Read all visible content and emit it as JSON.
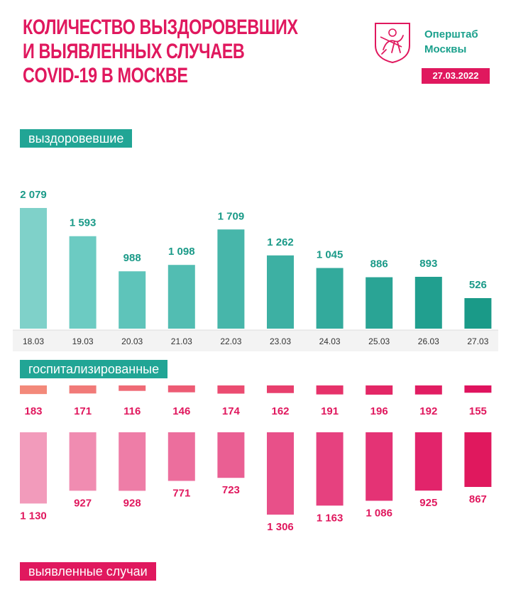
{
  "header": {
    "title_lines": [
      "КОЛИЧЕСТВО ВЫЗДОРОВЕВШИХ",
      "И ВЫЯВЛЕННЫХ СЛУЧАЕВ",
      "COVID-19 В МОСКВЕ"
    ],
    "org_lines": [
      "Оперштаб",
      "Москвы"
    ],
    "date": "27.03.2022",
    "emblem_icon": "moscow-coat-of-arms-icon"
  },
  "labels": {
    "recovered": "выздоровевшие",
    "hospitalized": "госпитализированные",
    "cases": "выявленные случаи"
  },
  "colors": {
    "accent_pink": "#e0185e",
    "accent_teal": "#21a595"
  },
  "chart_data": [
    {
      "type": "bar",
      "title": "выздоровевшие",
      "categories": [
        "18.03",
        "19.03",
        "20.03",
        "21.03",
        "22.03",
        "23.03",
        "24.03",
        "25.03",
        "26.03",
        "27.03"
      ],
      "values": [
        2079,
        1593,
        988,
        1098,
        1709,
        1262,
        1045,
        886,
        893,
        526
      ],
      "value_labels": [
        "2 079",
        "1 593",
        "988",
        "1 098",
        "1 709",
        "1 262",
        "1 045",
        "886",
        "893",
        "526"
      ],
      "colors": [
        "#7fd1c9",
        "#6ccbc2",
        "#5ec4ba",
        "#52bdb2",
        "#47b6aa",
        "#3db0a3",
        "#33aa9c",
        "#2aa495",
        "#219f8f",
        "#1a9a88"
      ]
    },
    {
      "type": "bar",
      "title": "госпитализированные",
      "categories": [
        "18.03",
        "19.03",
        "20.03",
        "21.03",
        "22.03",
        "23.03",
        "24.03",
        "25.03",
        "26.03",
        "27.03"
      ],
      "values": [
        183,
        171,
        116,
        146,
        174,
        162,
        191,
        196,
        192,
        155
      ],
      "value_labels": [
        "183",
        "171",
        "116",
        "146",
        "174",
        "162",
        "191",
        "196",
        "192",
        "155"
      ],
      "colors": [
        "#f3897a",
        "#f17a78",
        "#ef6a76",
        "#ed5b74",
        "#eb4c71",
        "#e83f6d",
        "#e6326a",
        "#e32766",
        "#e11d62",
        "#df135e"
      ]
    },
    {
      "type": "bar",
      "title": "выявленные случаи",
      "categories": [
        "18.03",
        "19.03",
        "20.03",
        "21.03",
        "22.03",
        "23.03",
        "24.03",
        "25.03",
        "26.03",
        "27.03"
      ],
      "values": [
        1130,
        927,
        928,
        771,
        723,
        1306,
        1163,
        1086,
        925,
        867
      ],
      "value_labels": [
        "1 130",
        "927",
        "928",
        "771",
        "723",
        "1 306",
        "1 163",
        "1 086",
        "925",
        "867"
      ],
      "colors": [
        "#f29bbb",
        "#f08cb1",
        "#ee7da7",
        "#ec6e9d",
        "#ea5f93",
        "#e85089",
        "#e6417f",
        "#e43375",
        "#e2246b",
        "#e0185e"
      ]
    }
  ]
}
